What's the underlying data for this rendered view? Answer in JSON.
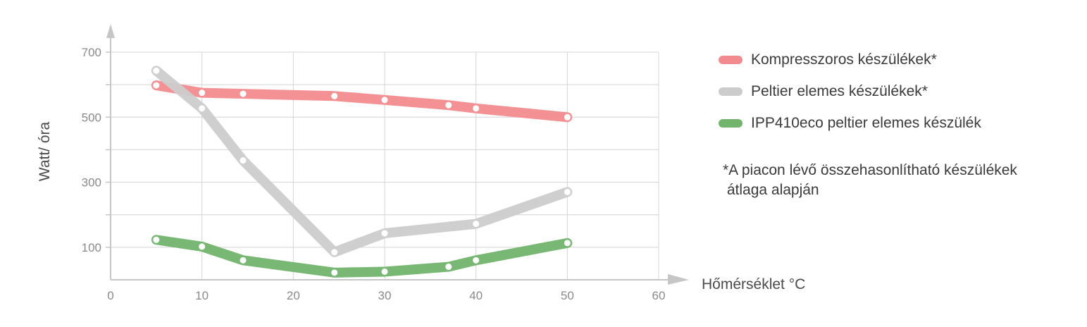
{
  "chart_data": {
    "type": "line",
    "ylabel": "Watt/ óra",
    "xlabel": "Hőmérséklet °C",
    "xlim": [
      0,
      60
    ],
    "ylim": [
      0,
      700
    ],
    "x_ticks": [
      "0",
      "10",
      "20",
      "30",
      "40",
      "50",
      "60"
    ],
    "y_ticks": [
      "100",
      "300",
      "500",
      "700"
    ],
    "y_tick_values": [
      100,
      300,
      500,
      700
    ],
    "grid": true,
    "legend_position": "right",
    "series": [
      {
        "name": "Kompresszoros készülékek*",
        "color": "#f28b8f",
        "x": [
          5,
          10,
          14.5,
          24.5,
          30,
          37,
          40,
          50
        ],
        "y": [
          598,
          575,
          572,
          565,
          553,
          537,
          527,
          500
        ]
      },
      {
        "name": "Peltier elemes készülékek*",
        "color": "#cccccc",
        "x": [
          5,
          10,
          14.5,
          24.5,
          30,
          40,
          50
        ],
        "y": [
          643,
          527,
          367,
          85,
          143,
          172,
          270
        ]
      },
      {
        "name": "IPP410eco peltier elemes készülék",
        "color": "#72b46d",
        "x": [
          5,
          10,
          14.5,
          24.5,
          30,
          37,
          40,
          50
        ],
        "y": [
          123,
          102,
          60,
          22,
          25,
          40,
          60,
          113
        ]
      }
    ],
    "note": "*A piacon lévő összehasonlítható készülékek\n átlaga alapján"
  }
}
